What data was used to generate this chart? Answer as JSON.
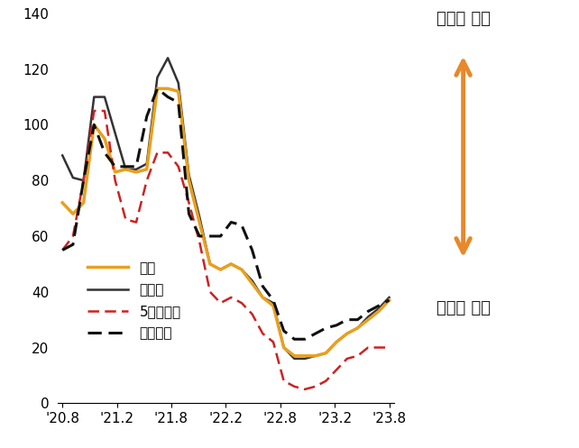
{
  "ylim": [
    0,
    140
  ],
  "yticks": [
    0,
    20,
    40,
    60,
    80,
    100,
    120,
    140
  ],
  "xtick_labels": [
    "'20.8",
    "'21.2",
    "'21.8",
    "'22.2",
    "'22.8",
    "'23.2",
    "'23.8"
  ],
  "background_color": "#ffffff",
  "전국": {
    "color": "#E8A020",
    "linewidth": 2.5,
    "linestyle": "solid",
    "values": [
      72,
      68,
      72,
      100,
      95,
      83,
      84,
      83,
      84,
      113,
      113,
      112,
      80,
      65,
      50,
      48,
      50,
      48,
      43,
      38,
      35,
      20,
      17,
      17,
      17,
      18,
      22,
      25,
      27,
      30,
      33,
      37
    ]
  },
  "수도권": {
    "color": "#333333",
    "linewidth": 1.8,
    "linestyle": "solid",
    "values": [
      89,
      81,
      80,
      110,
      110,
      97,
      84,
      84,
      86,
      117,
      124,
      115,
      82,
      67,
      50,
      48,
      50,
      48,
      44,
      38,
      36,
      20,
      16,
      16,
      17,
      18,
      22,
      25,
      27,
      31,
      34,
      38
    ]
  },
  "5개광역시": {
    "color": "#CC2222",
    "linewidth": 1.8,
    "linestyle": "dashed",
    "values": [
      55,
      60,
      80,
      105,
      105,
      80,
      66,
      65,
      80,
      90,
      90,
      85,
      72,
      58,
      40,
      36,
      38,
      36,
      32,
      25,
      22,
      8,
      6,
      5,
      6,
      8,
      12,
      16,
      17,
      20,
      20,
      20
    ]
  },
  "기타지방": {
    "color": "#111111",
    "linewidth": 2.2,
    "linestyle": "dashed",
    "values": [
      55,
      57,
      80,
      100,
      90,
      85,
      85,
      85,
      103,
      113,
      110,
      108,
      68,
      60,
      60,
      60,
      65,
      64,
      55,
      42,
      37,
      26,
      23,
      23,
      25,
      27,
      28,
      30,
      30,
      33,
      35,
      37
    ]
  },
  "legend_labels": [
    "전국",
    "수도권",
    "5개광역시",
    "기타지방"
  ],
  "annotation_top": "매수자 많음",
  "annotation_bottom": "매수자 적음",
  "arrow_color": "#E8882A"
}
